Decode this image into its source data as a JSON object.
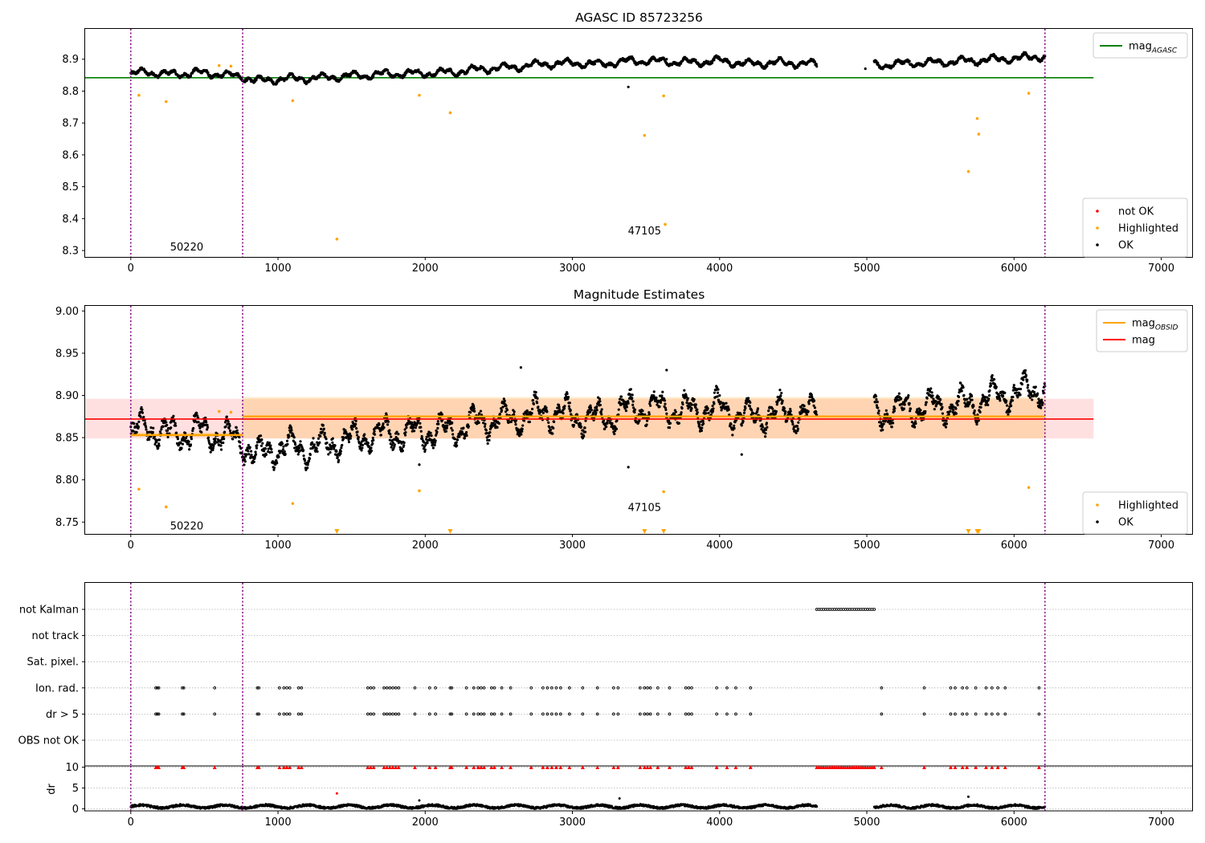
{
  "chart_data": [
    {
      "type": "scatter",
      "title": "AGASC ID 85723256",
      "xlabel": "",
      "ylabel": "",
      "xlim": [
        -310,
        7210
      ],
      "ylim": [
        8.28,
        8.995
      ],
      "xticks": [
        0,
        1000,
        2000,
        3000,
        4000,
        5000,
        6000,
        7000
      ],
      "yticks": [
        8.3,
        8.4,
        8.5,
        8.6,
        8.7,
        8.8,
        8.9
      ],
      "ytick_labels": [
        "8.3",
        "8.4",
        "8.5",
        "8.6",
        "8.7",
        "8.8",
        "8.9"
      ],
      "vlines": [
        0,
        760,
        6210
      ],
      "hline": {
        "name": "mag_AGASC",
        "y": 8.842,
        "x_range": [
          -310,
          6540
        ],
        "color": "#008000"
      },
      "annotations": [
        {
          "text": "50220",
          "x": 380,
          "y": 8.31
        },
        {
          "text": "47105",
          "x": 3490,
          "y": 8.36
        }
      ],
      "legends": [
        {
          "position": "top-right",
          "entries": [
            {
              "label": "mag",
              "sub": "AGASC",
              "kind": "line",
              "color": "#008000"
            }
          ]
        },
        {
          "position": "bottom-right",
          "entries": [
            {
              "label": "not OK",
              "kind": "dot",
              "color": "#ff0000"
            },
            {
              "label": "Highlighted",
              "kind": "dot",
              "color": "#ffa500"
            },
            {
              "label": "OK",
              "kind": "dot",
              "color": "#000000"
            }
          ]
        }
      ],
      "series": [
        {
          "name": "Highlighted",
          "color": "#ffa500",
          "points": [
            [
              55,
              8.787
            ],
            [
              240,
              8.767
            ],
            [
              600,
              8.88
            ],
            [
              680,
              8.878
            ],
            [
              1100,
              8.77
            ],
            [
              1400,
              8.336
            ],
            [
              1960,
              8.787
            ],
            [
              2170,
              8.732
            ],
            [
              3490,
              8.661
            ],
            [
              3620,
              8.785
            ],
            [
              3630,
              8.382
            ],
            [
              5690,
              8.548
            ],
            [
              5750,
              8.714
            ],
            [
              5760,
              8.665
            ],
            [
              6100,
              8.793
            ]
          ]
        },
        {
          "name": "OK outliers",
          "color": "#000000",
          "points": [
            [
              3380,
              8.813
            ],
            [
              3640,
              8.9
            ],
            [
              4990,
              8.87
            ]
          ]
        }
      ],
      "ok_trend": {
        "segments": [
          [
            0,
            4660
          ],
          [
            5050,
            6210
          ]
        ],
        "anchors": [
          [
            0,
            8.85
          ],
          [
            100,
            8.862
          ],
          [
            250,
            8.852
          ],
          [
            450,
            8.858
          ],
          [
            600,
            8.853
          ],
          [
            760,
            8.845
          ],
          [
            850,
            8.832
          ],
          [
            1000,
            8.838
          ],
          [
            1200,
            8.84
          ],
          [
            1400,
            8.845
          ],
          [
            1600,
            8.85
          ],
          [
            1800,
            8.855
          ],
          [
            2000,
            8.856
          ],
          [
            2200,
            8.86
          ],
          [
            2400,
            8.87
          ],
          [
            2600,
            8.875
          ],
          [
            2800,
            8.885
          ],
          [
            3000,
            8.888
          ],
          [
            3200,
            8.885
          ],
          [
            3400,
            8.895
          ],
          [
            3600,
            8.893
          ],
          [
            3800,
            8.89
          ],
          [
            4000,
            8.895
          ],
          [
            4200,
            8.885
          ],
          [
            4400,
            8.89
          ],
          [
            4600,
            8.885
          ],
          [
            5100,
            8.882
          ],
          [
            5300,
            8.888
          ],
          [
            5500,
            8.89
          ],
          [
            5700,
            8.895
          ],
          [
            5900,
            8.9
          ],
          [
            6100,
            8.905
          ],
          [
            6210,
            8.91
          ]
        ],
        "wave_amplitude": 0.014,
        "noise": 0.004,
        "spacing": 2.5
      }
    },
    {
      "type": "scatter",
      "title": "Magnitude Estimates",
      "xlabel": "",
      "ylabel": "",
      "xlim": [
        -310,
        7210
      ],
      "ylim": [
        8.736,
        9.006
      ],
      "xticks": [
        0,
        1000,
        2000,
        3000,
        4000,
        5000,
        6000,
        7000
      ],
      "yticks": [
        8.75,
        8.8,
        8.85,
        8.9,
        8.95,
        9.0
      ],
      "ytick_labels": [
        "8.75",
        "8.80",
        "8.85",
        "8.90",
        "8.95",
        "9.00"
      ],
      "vlines": [
        0,
        760,
        6210
      ],
      "mag": {
        "y": 8.872,
        "band": [
          8.849,
          8.896
        ],
        "x_range": [
          -310,
          6540
        ],
        "color": "#ff0000"
      },
      "mag_obsid": [
        {
          "x": [
            0,
            760
          ],
          "y": 8.853,
          "band": [
            8.851,
            8.856
          ]
        },
        {
          "x": [
            760,
            6210
          ],
          "y": 8.875,
          "band": [
            8.849,
            8.898
          ]
        }
      ],
      "annotations": [
        {
          "text": "50220",
          "x": 380,
          "y": 8.745
        },
        {
          "text": "47105",
          "x": 3490,
          "y": 8.767
        }
      ],
      "legends": [
        {
          "position": "top-right",
          "entries": [
            {
              "label": "mag",
              "sub": "OBSID",
              "kind": "line",
              "color": "#ffa500"
            },
            {
              "label": "mag",
              "kind": "line",
              "color": "#ff0000"
            }
          ]
        },
        {
          "position": "bottom-right",
          "entries": [
            {
              "label": "Highlighted",
              "kind": "dot",
              "color": "#ffa500"
            },
            {
              "label": "OK",
              "kind": "dot",
              "color": "#000000"
            }
          ]
        }
      ],
      "series": [
        {
          "name": "Highlighted",
          "color": "#ffa500",
          "points": [
            [
              55,
              8.789
            ],
            [
              240,
              8.768
            ],
            [
              600,
              8.881
            ],
            [
              680,
              8.88
            ],
            [
              1100,
              8.772
            ],
            [
              1960,
              8.787
            ],
            [
              3620,
              8.786
            ],
            [
              6100,
              8.791
            ]
          ]
        },
        {
          "name": "Highlighted below axis",
          "color": "#ffa500",
          "marker": "triangle-down",
          "points": [
            [
              1400,
              8.74
            ],
            [
              2170,
              8.74
            ],
            [
              3490,
              8.74
            ],
            [
              3620,
              8.74
            ],
            [
              5690,
              8.74
            ],
            [
              5750,
              8.74
            ],
            [
              5760,
              8.74
            ]
          ]
        },
        {
          "name": "OK outliers",
          "color": "#000000",
          "points": [
            [
              3380,
              8.815
            ],
            [
              2650,
              8.933
            ],
            [
              3640,
              8.93
            ],
            [
              1960,
              8.818
            ],
            [
              4150,
              8.83
            ]
          ]
        }
      ],
      "ok_trend": {
        "segments": [
          [
            0,
            4660
          ],
          [
            5050,
            6210
          ]
        ],
        "anchors": [
          [
            0,
            8.85
          ],
          [
            100,
            8.865
          ],
          [
            250,
            8.852
          ],
          [
            450,
            8.858
          ],
          [
            600,
            8.853
          ],
          [
            760,
            8.845
          ],
          [
            850,
            8.828
          ],
          [
            1000,
            8.838
          ],
          [
            1200,
            8.837
          ],
          [
            1400,
            8.845
          ],
          [
            1600,
            8.852
          ],
          [
            1800,
            8.856
          ],
          [
            2000,
            8.856
          ],
          [
            2200,
            8.86
          ],
          [
            2400,
            8.87
          ],
          [
            2600,
            8.872
          ],
          [
            2800,
            8.88
          ],
          [
            3000,
            8.876
          ],
          [
            3200,
            8.872
          ],
          [
            3400,
            8.885
          ],
          [
            3600,
            8.885
          ],
          [
            3800,
            8.882
          ],
          [
            4000,
            8.885
          ],
          [
            4200,
            8.873
          ],
          [
            4400,
            8.88
          ],
          [
            4600,
            8.878
          ],
          [
            5100,
            8.88
          ],
          [
            5300,
            8.885
          ],
          [
            5500,
            8.887
          ],
          [
            5700,
            8.89
          ],
          [
            5900,
            8.9
          ],
          [
            6100,
            8.905
          ],
          [
            6210,
            8.91
          ]
        ],
        "wave_amplitude": 0.022,
        "noise": 0.006,
        "spacing": 2.5
      }
    },
    {
      "type": "scatter",
      "title": "",
      "xlabel": "",
      "ylabel": "",
      "xlim": [
        -310,
        7210
      ],
      "xticks": [
        0,
        1000,
        2000,
        3000,
        4000,
        5000,
        6000,
        7000
      ],
      "vlines": [
        0,
        760,
        6210
      ],
      "flag_rows": [
        "not Kalman",
        "not track",
        "Sat. pixel.",
        "Ion. rad.",
        "dr > 5",
        "OBS not OK"
      ],
      "flag_events": {
        "not Kalman": [
          [
            4660,
            5050
          ]
        ],
        "Ion. rad.": [
          170,
          180,
          190,
          350,
          360,
          570,
          860,
          870,
          1010,
          1040,
          1060,
          1080,
          1140,
          1160,
          1610,
          1630,
          1650,
          1720,
          1740,
          1760,
          1780,
          1800,
          1820,
          1930,
          2030,
          2070,
          2170,
          2180,
          2280,
          2330,
          2360,
          2380,
          2400,
          2450,
          2470,
          2520,
          2580,
          2720,
          2800,
          2830,
          2860,
          2890,
          2920,
          2980,
          3070,
          3170,
          3280,
          3310,
          3460,
          3490,
          3510,
          3530,
          3580,
          3660,
          3770,
          3790,
          3810,
          3980,
          4050,
          4110,
          4210,
          5100,
          5390,
          5570,
          5600,
          5650,
          5680,
          5740,
          5810,
          5850,
          5890,
          5940,
          6170
        ],
        "dr > 5": [
          170,
          180,
          190,
          350,
          360,
          570,
          860,
          870,
          1010,
          1040,
          1060,
          1080,
          1140,
          1160,
          1610,
          1630,
          1650,
          1720,
          1740,
          1760,
          1780,
          1800,
          1820,
          1930,
          2030,
          2070,
          2170,
          2180,
          2280,
          2330,
          2360,
          2380,
          2400,
          2450,
          2470,
          2520,
          2580,
          2720,
          2800,
          2830,
          2860,
          2890,
          2920,
          2980,
          3070,
          3170,
          3280,
          3310,
          3460,
          3490,
          3510,
          3530,
          3580,
          3660,
          3770,
          3790,
          3810,
          3980,
          4050,
          4110,
          4210,
          5100,
          5390,
          5570,
          5600,
          5650,
          5680,
          5740,
          5810,
          5850,
          5890,
          5940,
          6170
        ]
      }
    },
    {
      "type": "scatter",
      "title": "",
      "xlabel": "",
      "ylabel": "dr",
      "xlim": [
        -310,
        7210
      ],
      "ylim": [
        -0.5,
        10.3
      ],
      "xticks": [
        0,
        1000,
        2000,
        3000,
        4000,
        5000,
        6000,
        7000
      ],
      "yticks": [
        0,
        5,
        10
      ],
      "ytick_labels": [
        "0",
        "5",
        "10"
      ],
      "vlines": [
        0,
        760,
        6210
      ],
      "clipped_value": 10,
      "clipped_marker": "triangle-up",
      "outliers": [
        [
          1400,
          3.7
        ],
        [
          3320,
          2.5
        ],
        [
          5690,
          2.9
        ],
        [
          1960,
          2.0
        ]
      ],
      "baseline": {
        "segments": [
          [
            0,
            4660
          ],
          [
            5050,
            6210
          ]
        ],
        "level": 0.55,
        "spacing": 2.5
      }
    }
  ]
}
